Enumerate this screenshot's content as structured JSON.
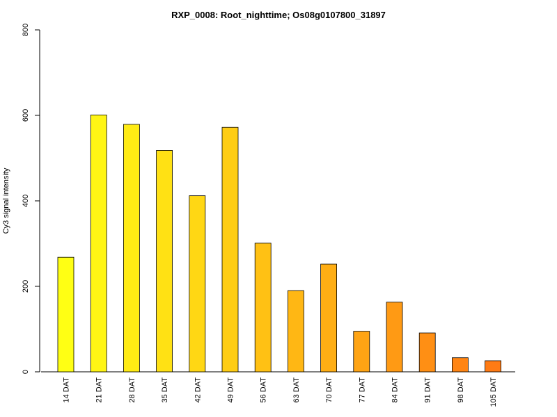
{
  "chart_data": {
    "type": "bar",
    "title": "RXP_0008: Root_nighttime; Os08g0107800_31897",
    "xlabel": "",
    "ylabel": "Cy3 signal intensity",
    "ylim": [
      0,
      800
    ],
    "yticks": [
      0,
      200,
      400,
      600,
      800
    ],
    "categories": [
      "14 DAT",
      "21 DAT",
      "28 DAT",
      "35 DAT",
      "42 DAT",
      "49 DAT",
      "56 DAT",
      "63 DAT",
      "70 DAT",
      "77 DAT",
      "84 DAT",
      "91 DAT",
      "98 DAT",
      "105 DAT"
    ],
    "values": [
      268,
      601,
      579,
      518,
      412,
      572,
      301,
      190,
      252,
      95,
      163,
      91,
      33,
      26
    ],
    "bar_colors": [
      "#FFFF14",
      "#FFF514",
      "#FFEB14",
      "#FFE114",
      "#FFD714",
      "#FFCD14",
      "#FFC114",
      "#FFB714",
      "#FFAE14",
      "#FFA414",
      "#FF9A14",
      "#FF8F14",
      "#FF8514",
      "#FF7B14"
    ],
    "grid": false,
    "legend": "none"
  }
}
